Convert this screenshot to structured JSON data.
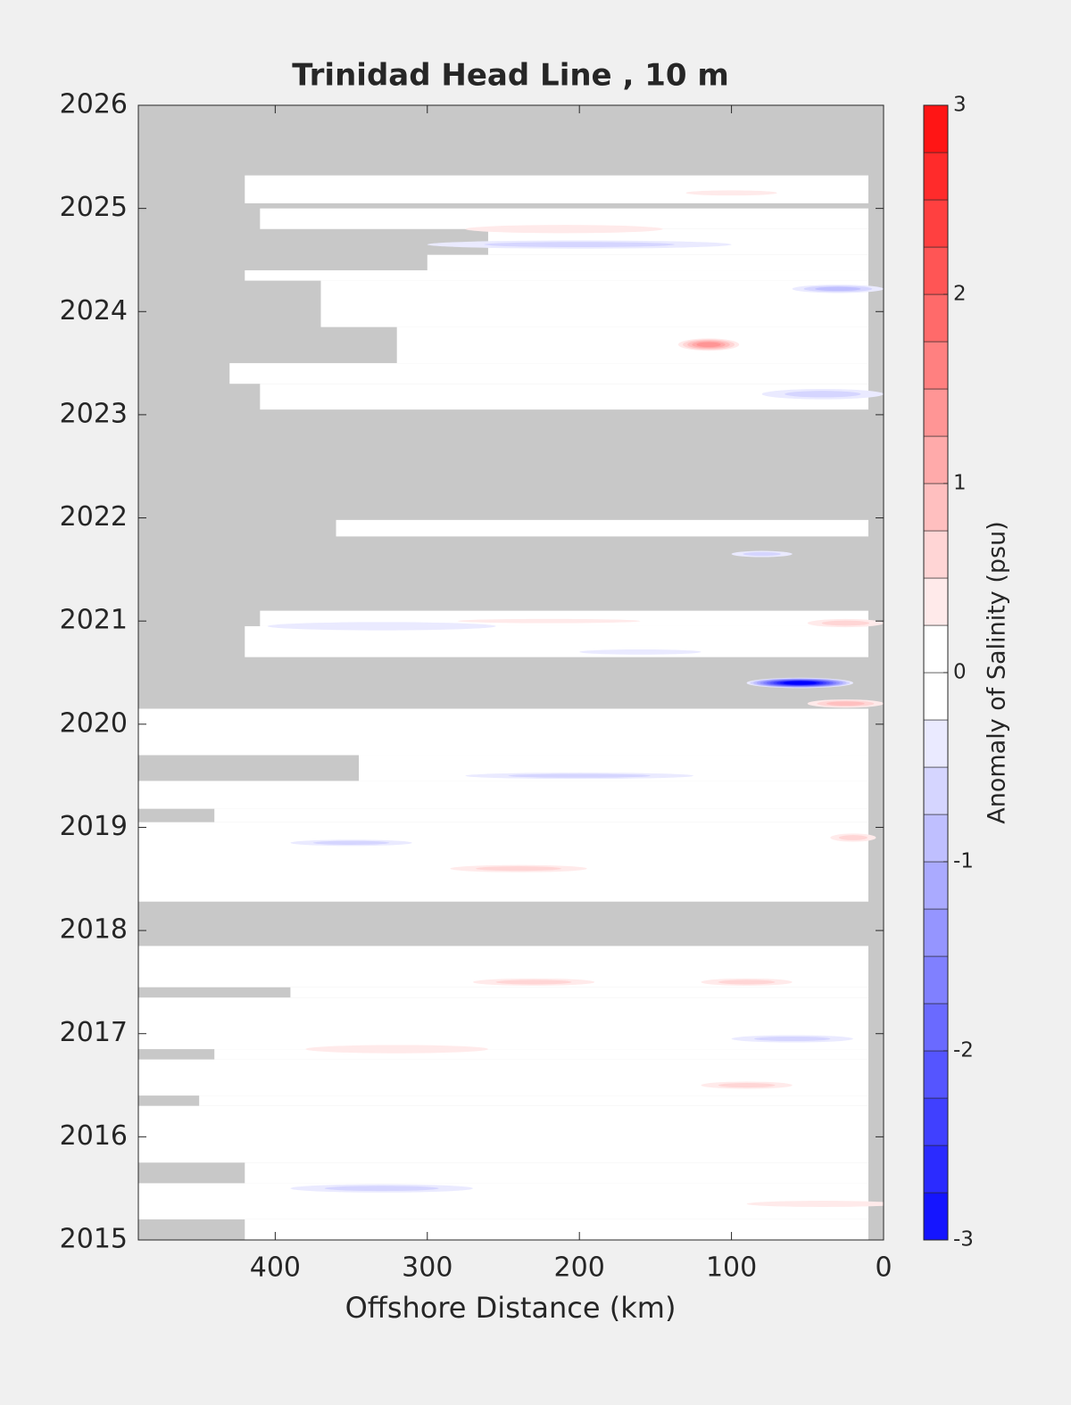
{
  "chart_data": {
    "type": "contour",
    "title": "Trinidad Head Line , 10 m",
    "x_label": "Offshore Distance (km)",
    "colorbar_label": "Anomaly of Salinity (psu)",
    "xlim": [
      490,
      0
    ],
    "xticks": [
      400,
      300,
      200,
      100,
      0
    ],
    "ylim": [
      2015,
      2026
    ],
    "yticks": [
      2015,
      2016,
      2017,
      2018,
      2019,
      2020,
      2021,
      2022,
      2023,
      2024,
      2025,
      2026
    ],
    "clim": [
      -3,
      3
    ],
    "cticks": [
      -3,
      -2,
      -1,
      0,
      1,
      2,
      3
    ],
    "level_step": 0.25,
    "colors": {
      "positive": "#ff0000",
      "negative": "#0000ff",
      "missing": "#c8c8c8"
    },
    "near_edge": 10,
    "coverage": [
      [
        2015.0,
        2015.2,
        420
      ],
      [
        2015.2,
        2015.55,
        490
      ],
      [
        2015.55,
        2015.75,
        420
      ],
      [
        2015.75,
        2016.3,
        490
      ],
      [
        2016.3,
        2016.4,
        450
      ],
      [
        2016.4,
        2016.75,
        490
      ],
      [
        2016.75,
        2016.85,
        440
      ],
      [
        2016.85,
        2017.35,
        490
      ],
      [
        2017.35,
        2017.45,
        390
      ],
      [
        2017.45,
        2017.85,
        490
      ],
      [
        2018.28,
        2019.05,
        490
      ],
      [
        2019.05,
        2019.18,
        440
      ],
      [
        2019.18,
        2019.45,
        490
      ],
      [
        2019.45,
        2019.7,
        345
      ],
      [
        2019.7,
        2020.15,
        490
      ],
      [
        2020.65,
        2020.95,
        420
      ],
      [
        2020.95,
        2021.1,
        410
      ],
      [
        2021.82,
        2021.98,
        360
      ],
      [
        2023.05,
        2023.3,
        410
      ],
      [
        2023.3,
        2023.5,
        430
      ],
      [
        2023.5,
        2023.85,
        320
      ],
      [
        2023.85,
        2024.3,
        370
      ],
      [
        2024.3,
        2024.4,
        420
      ],
      [
        2024.4,
        2024.55,
        300
      ],
      [
        2024.55,
        2024.8,
        260
      ],
      [
        2024.8,
        2025.0,
        410
      ],
      [
        2025.05,
        2025.32,
        420
      ]
    ],
    "blobs": [
      {
        "x": 115,
        "y": 2023.68,
        "width": 40,
        "height": 0.12,
        "value": 1.3
      },
      {
        "x": 55,
        "y": 2020.4,
        "width": 70,
        "height": 0.1,
        "value": -3
      },
      {
        "x": 25,
        "y": 2020.2,
        "width": 50,
        "height": 0.08,
        "value": 0.8
      },
      {
        "x": 40,
        "y": 2023.2,
        "width": 80,
        "height": 0.1,
        "value": -0.7
      },
      {
        "x": 30,
        "y": 2024.22,
        "width": 60,
        "height": 0.08,
        "value": -0.8
      },
      {
        "x": 200,
        "y": 2024.65,
        "width": 200,
        "height": 0.08,
        "value": -0.6
      },
      {
        "x": 210,
        "y": 2024.8,
        "width": 130,
        "height": 0.08,
        "value": 0.4
      },
      {
        "x": 100,
        "y": 2025.15,
        "width": 60,
        "height": 0.05,
        "value": 0.3
      },
      {
        "x": 25,
        "y": 2020.98,
        "width": 50,
        "height": 0.08,
        "value": 0.5
      },
      {
        "x": 330,
        "y": 2015.5,
        "width": 120,
        "height": 0.08,
        "value": -0.6
      },
      {
        "x": 320,
        "y": 2016.85,
        "width": 120,
        "height": 0.08,
        "value": 0.3
      },
      {
        "x": 240,
        "y": 2018.6,
        "width": 90,
        "height": 0.07,
        "value": 0.5
      },
      {
        "x": 60,
        "y": 2016.95,
        "width": 80,
        "height": 0.07,
        "value": -0.6
      },
      {
        "x": 90,
        "y": 2017.5,
        "width": 60,
        "height": 0.07,
        "value": 0.6
      },
      {
        "x": 230,
        "y": 2017.5,
        "width": 80,
        "height": 0.07,
        "value": 0.5
      },
      {
        "x": 200,
        "y": 2019.5,
        "width": 150,
        "height": 0.06,
        "value": -0.5
      },
      {
        "x": 350,
        "y": 2018.85,
        "width": 80,
        "height": 0.06,
        "value": -0.5
      },
      {
        "x": 90,
        "y": 2016.5,
        "width": 60,
        "height": 0.07,
        "value": 0.5
      },
      {
        "x": 40,
        "y": 2015.35,
        "width": 100,
        "height": 0.06,
        "value": 0.4
      },
      {
        "x": 220,
        "y": 2021.0,
        "width": 120,
        "height": 0.04,
        "value": 0.3
      },
      {
        "x": 80,
        "y": 2021.65,
        "width": 40,
        "height": 0.06,
        "value": -0.6
      },
      {
        "x": 160,
        "y": 2020.7,
        "width": 80,
        "height": 0.05,
        "value": -0.4
      },
      {
        "x": 20,
        "y": 2018.9,
        "width": 30,
        "height": 0.08,
        "value": 0.7
      },
      {
        "x": 330,
        "y": 2020.95,
        "width": 150,
        "height": 0.08,
        "value": -0.3
      }
    ]
  }
}
